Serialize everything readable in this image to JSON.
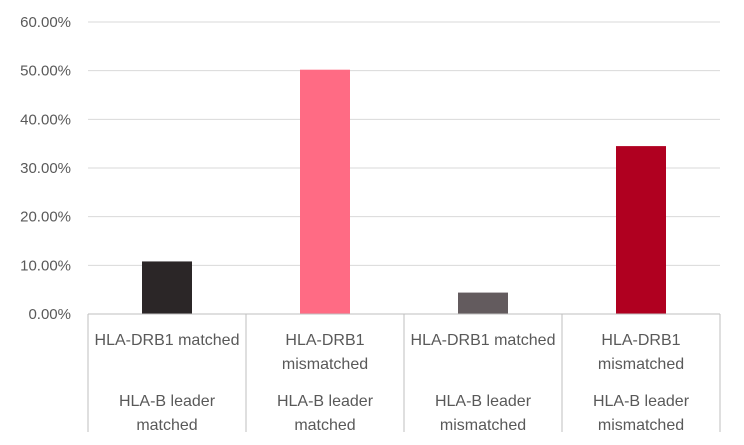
{
  "chart_data": {
    "type": "bar",
    "title": "",
    "xlabel": "",
    "ylabel": "",
    "ylim": [
      0,
      60
    ],
    "y_ticks": [
      0,
      10,
      20,
      30,
      40,
      50,
      60
    ],
    "y_tick_labels": [
      "0.00%",
      "10.00%",
      "20.00%",
      "30.00%",
      "40.00%",
      "50.00%",
      "60.00%"
    ],
    "grid": true,
    "legend": "none",
    "categories": [
      {
        "inner": [
          "HLA-DRB1 matched"
        ],
        "outer": [
          "HLA-B leader",
          "matched"
        ]
      },
      {
        "inner": [
          "HLA-DRB1",
          "mismatched"
        ],
        "outer": [
          "HLA-B leader",
          "matched"
        ]
      },
      {
        "inner": [
          "HLA-DRB1 matched"
        ],
        "outer": [
          "HLA-B leader",
          "mismatched"
        ]
      },
      {
        "inner": [
          "HLA-DRB1",
          "mismatched"
        ],
        "outer": [
          "HLA-B leader",
          "mismatched"
        ]
      }
    ],
    "values": [
      10.8,
      50.2,
      4.4,
      34.5
    ],
    "bar_colors": [
      "#2b2627",
      "#ff6b84",
      "#635b5e",
      "#b00020"
    ]
  }
}
